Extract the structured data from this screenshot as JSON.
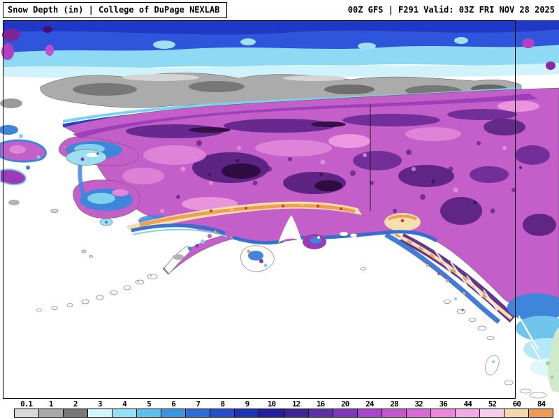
{
  "header": {
    "left_title": "Snow Depth (in) | College of DuPage NEXLAB",
    "right_title": "00Z GFS | F291 Valid: 03Z FRI NOV 28 2025"
  },
  "map": {
    "region": "Alaska",
    "ocean_color": "#ffffff",
    "border_line_color": "#000000"
  },
  "legend": {
    "units": "in",
    "cells": [
      {
        "label": "0.1",
        "color": "#d9d9d9"
      },
      {
        "label": "1",
        "color": "#a9a9a9"
      },
      {
        "label": "2",
        "color": "#787878"
      },
      {
        "label": "3",
        "color": "#d2f6fc"
      },
      {
        "label": "4",
        "color": "#93e1f4"
      },
      {
        "label": "5",
        "color": "#5bbfeb"
      },
      {
        "label": "6",
        "color": "#3b96e0"
      },
      {
        "label": "7",
        "color": "#2f6ed6"
      },
      {
        "label": "8",
        "color": "#264ec8"
      },
      {
        "label": "9",
        "color": "#1e33b4"
      },
      {
        "label": "10",
        "color": "#241fa0"
      },
      {
        "label": "12",
        "color": "#3e2596"
      },
      {
        "label": "16",
        "color": "#5e2fa6"
      },
      {
        "label": "20",
        "color": "#8138b8"
      },
      {
        "label": "24",
        "color": "#a845c8"
      },
      {
        "label": "28",
        "color": "#c455cc"
      },
      {
        "label": "32",
        "color": "#d96ad4"
      },
      {
        "label": "36",
        "color": "#ea86dc"
      },
      {
        "label": "44",
        "color": "#f4a9e4"
      },
      {
        "label": "52",
        "color": "#f9cdee"
      },
      {
        "label": "60",
        "color": "#f6d7a8"
      },
      {
        "label": "84",
        "color": "#ed9b57"
      }
    ]
  }
}
